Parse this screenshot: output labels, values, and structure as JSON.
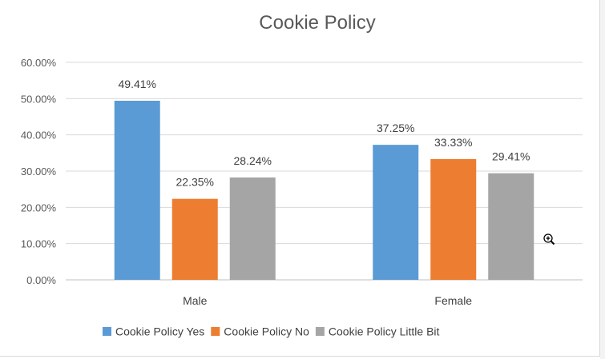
{
  "chart_data": {
    "type": "bar",
    "title": "Cookie Policy",
    "categories": [
      "Male",
      "Female"
    ],
    "series": [
      {
        "name": "Cookie Policy Yes",
        "values": [
          49.41,
          37.25
        ],
        "labels": [
          "49.41%",
          "37.25%"
        ],
        "color": "#5b9bd5"
      },
      {
        "name": "Cookie Policy No",
        "values": [
          22.35,
          33.33
        ],
        "labels": [
          "22.35%",
          "33.33%"
        ],
        "color": "#ed7d31"
      },
      {
        "name": "Cookie Policy Little Bit",
        "values": [
          28.24,
          29.41
        ],
        "labels": [
          "28.24%",
          "29.41%"
        ],
        "color": "#a5a5a5"
      }
    ],
    "ylim": [
      0,
      60
    ],
    "yticks": [
      "0.00%",
      "10.00%",
      "20.00%",
      "30.00%",
      "40.00%",
      "50.00%",
      "60.00%"
    ],
    "ytick_values": [
      0,
      10,
      20,
      30,
      40,
      50,
      60
    ],
    "grid": true,
    "legend": "bottom"
  },
  "cursor": {
    "icon": "zoom-in-icon"
  }
}
